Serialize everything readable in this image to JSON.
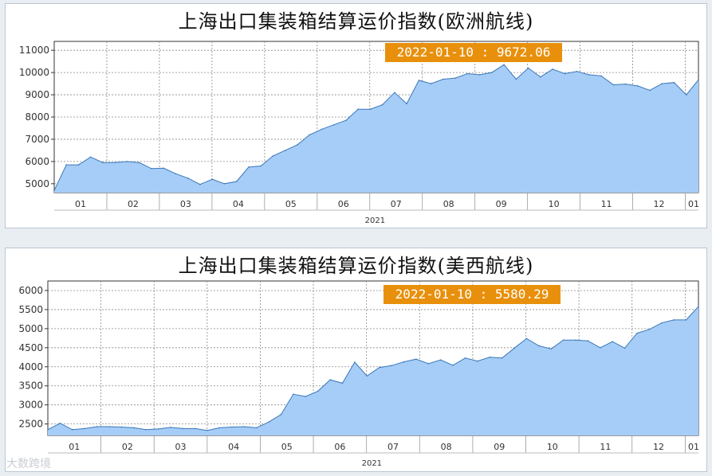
{
  "chart_data": [
    {
      "type": "area",
      "title": "上海出口集装箱结算运价指数(欧洲航线)",
      "year_label": "2021",
      "x_ticks": [
        "01",
        "02",
        "03",
        "04",
        "05",
        "06",
        "07",
        "08",
        "09",
        "10",
        "11",
        "12",
        "01"
      ],
      "y_ticks": [
        5000,
        6000,
        7000,
        8000,
        9000,
        10000,
        11000
      ],
      "ylim": [
        4600,
        11400
      ],
      "annotation": "2022-01-10 : 9672.06",
      "grid": true,
      "series": [
        {
          "values": [
            4700,
            5850,
            5850,
            6200,
            5950,
            5950,
            6000,
            5950,
            5680,
            5700,
            5450,
            5250,
            4970,
            5200,
            5000,
            5100,
            5750,
            5800,
            6250,
            6500,
            6750,
            7200,
            7450,
            7650,
            7850,
            8350,
            8350,
            8550,
            9100,
            8600,
            9650,
            9500,
            9700,
            9750,
            9950,
            9900,
            10000,
            10350,
            9700,
            10200,
            9800,
            10150,
            9950,
            10050,
            9900,
            9850,
            9450,
            9480,
            9400,
            9200,
            9500,
            9550,
            9000,
            9672.06
          ]
        }
      ]
    },
    {
      "type": "area",
      "title": "上海出口集装箱结算运价指数(美西航线)",
      "year_label": "2021",
      "x_ticks": [
        "01",
        "02",
        "03",
        "04",
        "05",
        "06",
        "07",
        "08",
        "09",
        "10",
        "11",
        "12",
        "01"
      ],
      "y_ticks": [
        2500,
        3000,
        3500,
        4000,
        4500,
        5000,
        5500,
        6000
      ],
      "ylim": [
        2200,
        6250
      ],
      "annotation": "2022-01-10 : 5580.29",
      "grid": true,
      "series": [
        {
          "values": [
            2350,
            2520,
            2350,
            2380,
            2430,
            2430,
            2420,
            2400,
            2350,
            2370,
            2410,
            2380,
            2380,
            2330,
            2400,
            2420,
            2430,
            2400,
            2550,
            2750,
            3280,
            3220,
            3360,
            3660,
            3570,
            4120,
            3760,
            3980,
            4030,
            4130,
            4200,
            4080,
            4180,
            4040,
            4230,
            4150,
            4250,
            4230,
            4490,
            4740,
            4550,
            4470,
            4700,
            4700,
            4680,
            4500,
            4660,
            4490,
            4880,
            4980,
            5150,
            5230,
            5230,
            5580.29
          ]
        }
      ]
    }
  ],
  "watermark": "大数跨境"
}
